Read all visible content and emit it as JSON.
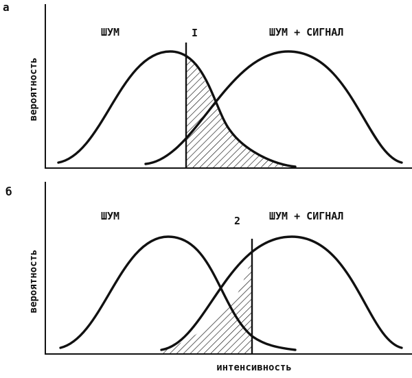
{
  "panels": [
    {
      "letter": "а",
      "noise_label": "ШУМ",
      "signal_label": "ШУМ + СИГНАЛ",
      "criterion_label": "I",
      "y_label": "вероятность",
      "x_label": ""
    },
    {
      "letter": "б",
      "noise_label": "ШУМ",
      "signal_label": "ШУМ + СИГНАЛ",
      "criterion_label": "2",
      "y_label": "вероятность",
      "x_label": "интенсивность"
    }
  ],
  "colors": {
    "ink": "#111111",
    "paper": "#ffffff"
  }
}
